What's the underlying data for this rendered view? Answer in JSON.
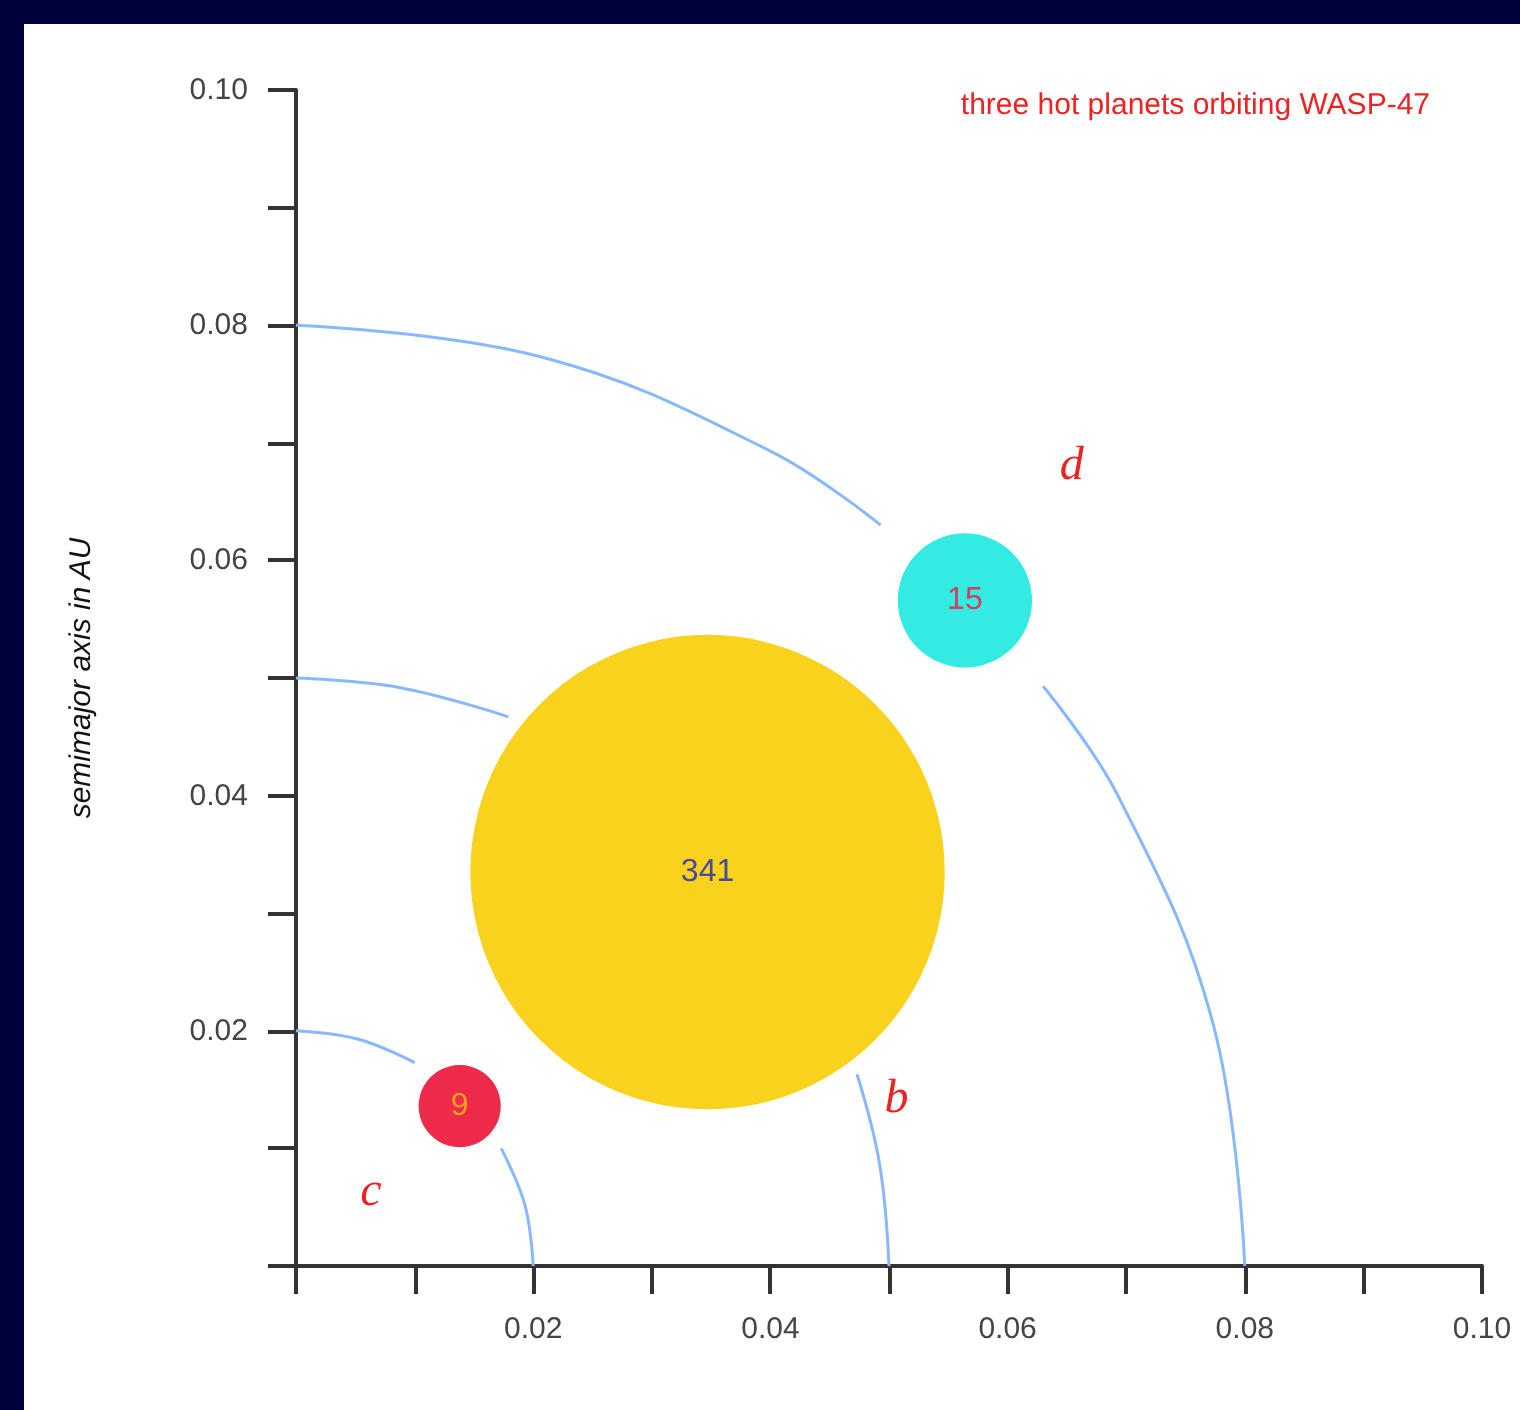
{
  "chart_data": {
    "type": "bubble",
    "title": "three hot planets orbiting WASP-47",
    "ylabel": "semimajor axis in AU",
    "series": [
      {
        "x": [
          0.0138,
          0.0347,
          0.0564
        ],
        "values": [
          0.0136,
          0.0335,
          0.0566
        ],
        "sizes": [
          0.03,
          1,
          0.08
        ],
        "colors": [
          "#ee2a4a",
          "#f9d21e",
          "#33ebe2"
        ]
      },
      {
        "type": "line",
        "color": "#88b8ff",
        "x": [
          0.02,
          0.0193,
          0.0173,
          0.0141,
          0.01,
          0.0052,
          0
        ],
        "values": [
          0,
          0.0052,
          0.01,
          null,
          0.0173,
          0.0193,
          0.02
        ]
      },
      {
        "type": "line",
        "color": "#88b8ff",
        "x": [
          0.05,
          0.0492,
          0.0473,
          0.0354,
          0.0179,
          0.0087,
          0
        ],
        "values": [
          0,
          0.0087,
          0.0163,
          null,
          0.0467,
          0.0492,
          0.05
        ]
      },
      {
        "type": "line",
        "color": "#88b8ff",
        "x": [
          0.08,
          0.0773,
          0.0693,
          0.063,
          0.0566,
          0.0493,
          0.04,
          0.0207,
          0
        ],
        "values": [
          0,
          0.0207,
          0.04,
          0.0493,
          null,
          0.063,
          0.0693,
          0.0773,
          0.08
        ]
      }
    ],
    "annotations": [
      "c",
      "b",
      "d",
      {
        "text": "9",
        "x": 0.0138,
        "y": 0.0136
      },
      {
        "text": "341",
        "x": 0.0347,
        "y": 0.0335
      },
      {
        "text": "15",
        "x": 0.0564,
        "y": 0.0566
      }
    ],
    "xlim": [
      0,
      0.1
    ],
    "ylim": [
      0,
      0.1
    ],
    "xticks": [
      {
        "value": 0,
        "label": null
      },
      {
        "value": 0.01,
        "label": null
      },
      0.02,
      {
        "value": 0.03,
        "label": null
      },
      0.04,
      {
        "value": 0.05,
        "label": null
      },
      0.06,
      {
        "value": 0.07,
        "label": null
      },
      0.08,
      {
        "value": 0.09,
        "label": null
      },
      {
        "value": 0.1,
        "label": "0.10"
      }
    ],
    "yticks": [
      {
        "value": 0,
        "label": null
      },
      {
        "value": 0.01,
        "label": null
      },
      0.02,
      {
        "value": 0.03,
        "label": null
      },
      0.04,
      {
        "value": 0.05,
        "label": null
      },
      0.06,
      {
        "value": 0.07,
        "label": null
      },
      0.08,
      {
        "value": 0.09,
        "label": null
      },
      {
        "value": 0.1,
        "label": "0.10"
      }
    ],
    "grid": false,
    "line_style": "solid"
  }
}
